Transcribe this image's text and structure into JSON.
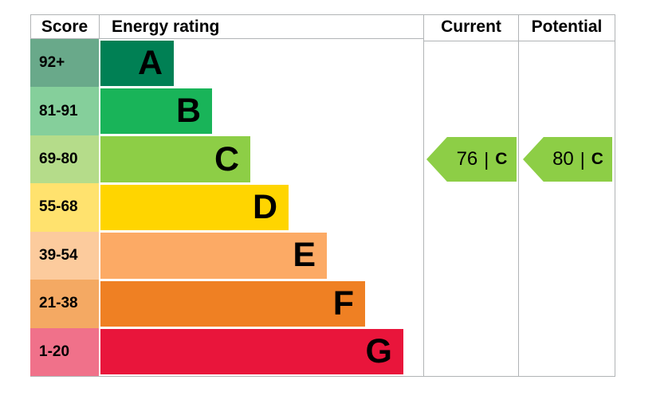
{
  "header": {
    "score": "Score",
    "energy_rating": "Energy rating",
    "current": "Current",
    "potential": "Potential"
  },
  "bands": [
    {
      "score": "92+",
      "letter": "A",
      "color": "#008054",
      "score_color": "#69a98a"
    },
    {
      "score": "81-91",
      "letter": "B",
      "color": "#19b459",
      "score_color": "#85cf9b"
    },
    {
      "score": "69-80",
      "letter": "C",
      "color": "#8dce46",
      "score_color": "#b5dc8a"
    },
    {
      "score": "55-68",
      "letter": "D",
      "color": "#ffd500",
      "score_color": "#ffe26e"
    },
    {
      "score": "39-54",
      "letter": "E",
      "color": "#fcaa65",
      "score_color": "#fccb9d"
    },
    {
      "score": "21-38",
      "letter": "F",
      "color": "#ef8023",
      "score_color": "#f4a963"
    },
    {
      "score": "1-20",
      "letter": "G",
      "color": "#e9153b",
      "score_color": "#f0718a"
    }
  ],
  "current": {
    "value": "76",
    "separator": "|",
    "band": "C",
    "band_index": 2,
    "arrow_color": "#8dce46"
  },
  "potential": {
    "value": "80",
    "separator": "|",
    "band": "C",
    "band_index": 2,
    "arrow_color": "#8dce46"
  },
  "colors": {
    "border": "#b1b4b6",
    "background": "#ffffff",
    "text": "#000000"
  },
  "chart_data": {
    "type": "bar",
    "title": "Energy rating",
    "columns": [
      "Score",
      "Energy rating",
      "Current",
      "Potential"
    ],
    "categories": [
      "A",
      "B",
      "C",
      "D",
      "E",
      "F",
      "G"
    ],
    "score_ranges": [
      "92+",
      "81-91",
      "69-80",
      "55-68",
      "39-54",
      "21-38",
      "1-20"
    ],
    "band_colors": [
      "#008054",
      "#19b459",
      "#8dce46",
      "#ffd500",
      "#fcaa65",
      "#ef8023",
      "#e9153b"
    ],
    "bar_relative_lengths": [
      1,
      2,
      3,
      4,
      5,
      6,
      7
    ],
    "current": {
      "score": 76,
      "rating": "C"
    },
    "potential": {
      "score": 80,
      "rating": "C"
    },
    "legend_position": "none",
    "grid": "off"
  }
}
